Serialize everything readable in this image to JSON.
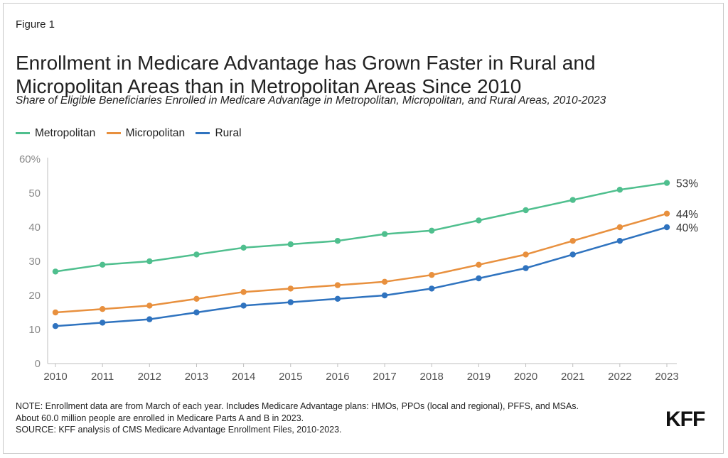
{
  "figure_label": "Figure 1",
  "title": "Enrollment in Medicare Advantage has Grown Faster in Rural and Micropolitan Areas than in Metropolitan Areas Since 2010",
  "subtitle": "Share of Eligible Beneficiaries Enrolled in Medicare Advantage in Metropolitan, Micropolitan, and Rural Areas, 2010-2023",
  "notes": [
    "NOTE: Enrollment data are from March of each year. Includes Medicare Advantage plans: HMOs, PPOs (local and regional), PFFS, and MSAs.",
    "About 60.0 million people are enrolled in Medicare Parts A and B in 2023.",
    "SOURCE: KFF analysis of CMS Medicare Advantage Enrollment Files, 2010-2023."
  ],
  "logo_text": "KFF",
  "chart_data": {
    "type": "line",
    "x": [
      2010,
      2011,
      2012,
      2013,
      2014,
      2015,
      2016,
      2017,
      2018,
      2019,
      2020,
      2021,
      2022,
      2023
    ],
    "ylim": [
      0,
      60
    ],
    "y_ticks": [
      "0",
      "10",
      "20",
      "30",
      "40",
      "50",
      "60%"
    ],
    "y_tick_values": [
      0,
      10,
      20,
      30,
      40,
      50,
      60
    ],
    "grid": false,
    "legend_position": "top-left",
    "series": [
      {
        "name": "Metropolitan",
        "color": "#4fbf8e",
        "values": [
          27,
          29,
          30,
          32,
          34,
          35,
          36,
          38,
          39,
          42,
          45,
          48,
          51,
          53
        ],
        "end_label": "53%"
      },
      {
        "name": "Micropolitan",
        "color": "#e8903e",
        "values": [
          15,
          16,
          17,
          19,
          21,
          22,
          23,
          24,
          26,
          29,
          32,
          36,
          40,
          44
        ],
        "end_label": "44%"
      },
      {
        "name": "Rural",
        "color": "#2f73bf",
        "values": [
          11,
          12,
          13,
          15,
          17,
          18,
          19,
          20,
          22,
          25,
          28,
          32,
          36,
          40
        ],
        "end_label": "40%"
      }
    ]
  }
}
